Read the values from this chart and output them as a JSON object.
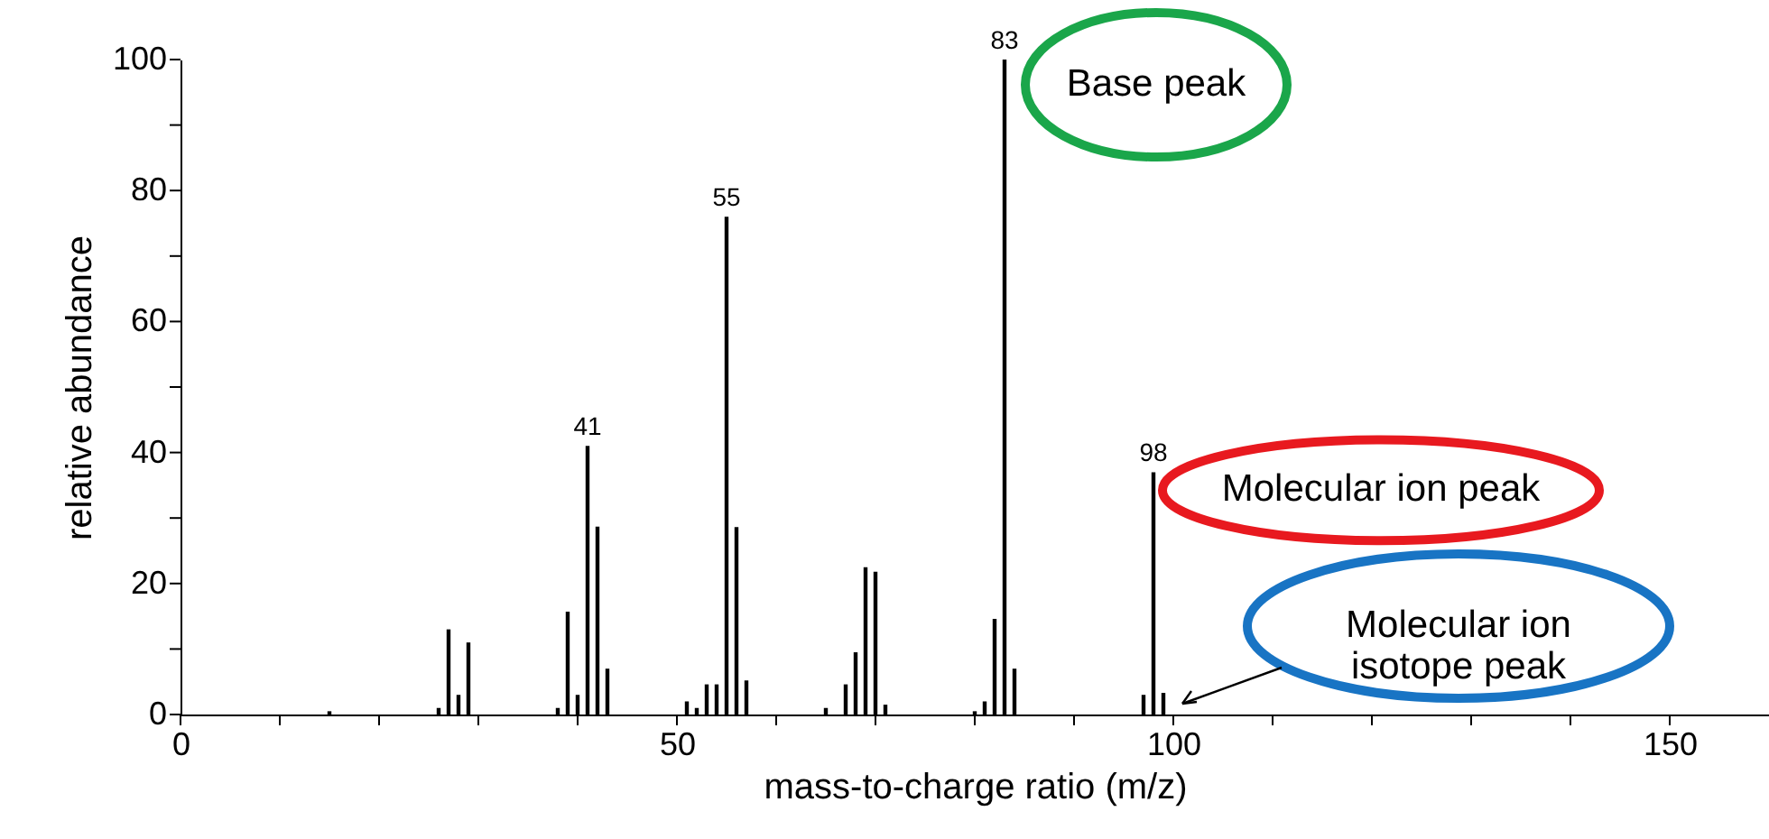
{
  "chart_data": {
    "type": "bar",
    "xlabel": "mass-to-charge ratio (m/z)",
    "ylabel": "relative abundance",
    "x": [
      15,
      26,
      27,
      28,
      29,
      38,
      39,
      40,
      41,
      42,
      43,
      51,
      52,
      53,
      54,
      55,
      56,
      57,
      65,
      67,
      68,
      69,
      70,
      71,
      80,
      81,
      82,
      83,
      84,
      97,
      98,
      99
    ],
    "series": [
      {
        "color": "#000000",
        "values": [
          0.5,
          1,
          13,
          3,
          11,
          1,
          15.7,
          3,
          41,
          28.7,
          7,
          2,
          1,
          4.6,
          4.6,
          76,
          28.6,
          5.2,
          1,
          4.6,
          9.5,
          22.5,
          21.8,
          1.5,
          0.5,
          2,
          14.6,
          100,
          7,
          3,
          37,
          3.3
        ]
      }
    ],
    "xlim": [
      0,
      160
    ],
    "ylim": [
      0,
      100
    ],
    "xticks": [
      0,
      {
        "value": 10,
        "label": null
      },
      {
        "value": 20,
        "label": null
      },
      {
        "value": 30,
        "label": null
      },
      {
        "value": 40,
        "label": null
      },
      50,
      {
        "value": 60,
        "label": null
      },
      {
        "value": 70,
        "label": null
      },
      {
        "value": 80,
        "label": null
      },
      {
        "value": 90,
        "label": null
      },
      100,
      {
        "value": 110,
        "label": null
      },
      {
        "value": 120,
        "label": null
      },
      {
        "value": 130,
        "label": null
      },
      {
        "value": 140,
        "label": null
      },
      150
    ],
    "yticks": [
      0,
      {
        "value": 10,
        "label": null
      },
      20,
      {
        "value": 30,
        "label": null
      },
      40,
      {
        "value": 50,
        "label": null
      },
      60,
      {
        "value": 70,
        "label": null
      },
      80,
      {
        "value": 90,
        "label": null
      },
      100
    ],
    "annotations": [
      {
        "text": "41",
        "x": 41,
        "y": 41
      },
      {
        "text": "55",
        "x": 55,
        "y": 76
      },
      {
        "text": "83",
        "x": 83,
        "y": 100
      },
      {
        "text": "98",
        "x": 98,
        "y": 37
      },
      {
        "text": "Base peak",
        "x": 83,
        "y": 100
      },
      {
        "text": "Molecular ion peak",
        "x": 98,
        "y": 37
      },
      "Molecular ion\nisotope peak"
    ],
    "grid": false
  }
}
